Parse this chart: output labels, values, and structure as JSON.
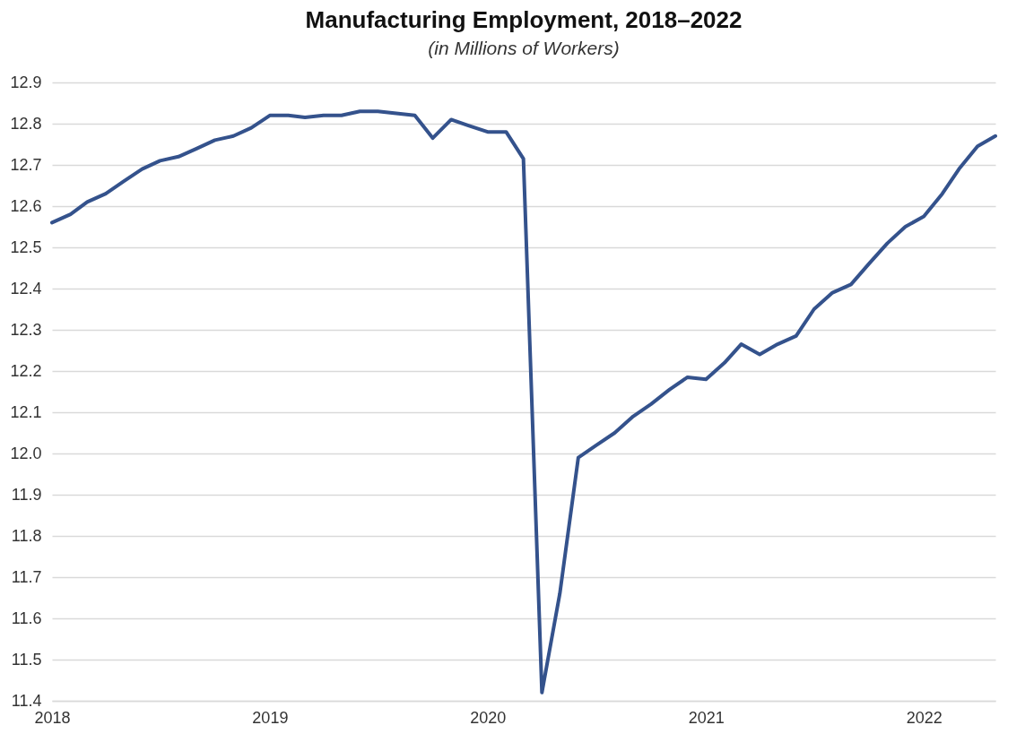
{
  "chart_data": {
    "type": "line",
    "title": "Manufacturing Employment, 2018–2022",
    "subtitle": "(in Millions of Workers)",
    "x": [
      "2018-01",
      "2018-02",
      "2018-03",
      "2018-04",
      "2018-05",
      "2018-06",
      "2018-07",
      "2018-08",
      "2018-09",
      "2018-10",
      "2018-11",
      "2018-12",
      "2019-01",
      "2019-02",
      "2019-03",
      "2019-04",
      "2019-05",
      "2019-06",
      "2019-07",
      "2019-08",
      "2019-09",
      "2019-10",
      "2019-11",
      "2019-12",
      "2020-01",
      "2020-02",
      "2020-03",
      "2020-04",
      "2020-05",
      "2020-06",
      "2020-07",
      "2020-08",
      "2020-09",
      "2020-10",
      "2020-11",
      "2020-12",
      "2021-01",
      "2021-02",
      "2021-03",
      "2021-04",
      "2021-05",
      "2021-06",
      "2021-07",
      "2021-08",
      "2021-09",
      "2021-10",
      "2021-11",
      "2021-12",
      "2022-01",
      "2022-02",
      "2022-03",
      "2022-04",
      "2022-05"
    ],
    "series": [
      {
        "color": "#34528c",
        "values": [
          12.56,
          12.58,
          12.61,
          12.63,
          12.66,
          12.69,
          12.71,
          12.72,
          12.74,
          12.76,
          12.77,
          12.79,
          12.82,
          12.82,
          12.815,
          12.82,
          12.82,
          12.83,
          12.83,
          12.825,
          12.82,
          12.765,
          12.81,
          12.795,
          12.78,
          12.78,
          12.715,
          11.42,
          11.66,
          11.99,
          12.02,
          12.05,
          12.09,
          12.12,
          12.155,
          12.185,
          12.18,
          12.22,
          12.265,
          12.24,
          12.265,
          12.285,
          12.35,
          12.39,
          12.41,
          12.46,
          12.51,
          12.55,
          12.575,
          12.63,
          12.69,
          12.745,
          12.77
        ]
      }
    ],
    "xlim": [
      "2018-01",
      "2022-05"
    ],
    "xticks": [
      "2018",
      "2019",
      "2020",
      "2021",
      "2022"
    ],
    "ylim": [
      11.4,
      12.9
    ],
    "yticks": [
      11.4,
      11.5,
      11.6,
      11.7,
      11.8,
      11.9,
      {
        "value": 12,
        "label": "12.0"
      },
      12.1,
      12.2,
      12.3,
      12.4,
      12.5,
      12.6,
      12.7,
      12.8,
      12.9
    ],
    "grid": "y",
    "legend": false,
    "marker": "none",
    "line_style": "solid"
  }
}
